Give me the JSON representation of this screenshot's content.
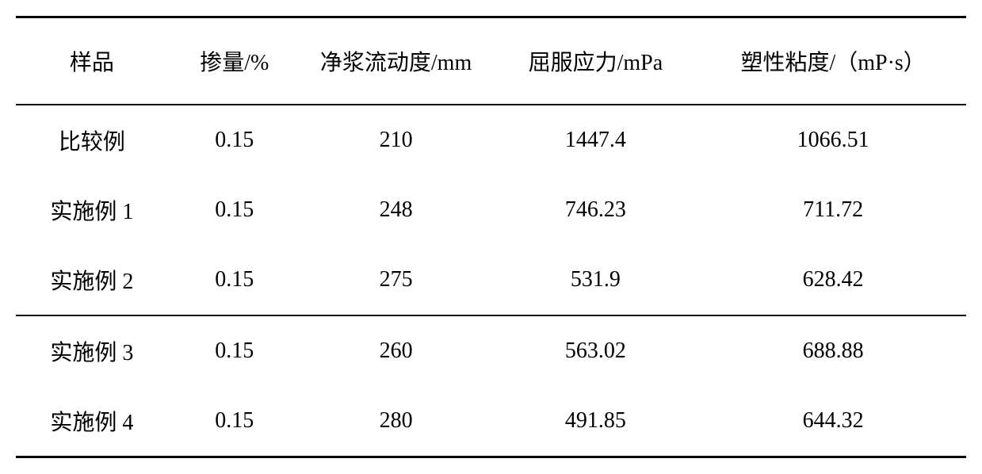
{
  "table": {
    "type": "table",
    "background_color": "#ffffff",
    "text_color": "#000000",
    "border_color": "#000000",
    "top_border_width": 3,
    "header_bottom_border_width": 2,
    "section_border_width": 2,
    "bottom_border_width": 3,
    "header_fontsize": 28,
    "cell_fontsize": 28,
    "columns": [
      {
        "key": "sample",
        "label": "样品",
        "width_pct": 16
      },
      {
        "key": "dosage",
        "label": "掺量/%",
        "width_pct": 14
      },
      {
        "key": "fluidity",
        "label": "净浆流动度/mm",
        "width_pct": 20
      },
      {
        "key": "yield_stress",
        "label": "屈服应力/mPa",
        "width_pct": 22
      },
      {
        "key": "viscosity",
        "label": "塑性粘度/（mP·s）",
        "width_pct": 28
      }
    ],
    "rows": [
      {
        "sample": "比较例",
        "dosage": "0.15",
        "fluidity": "210",
        "yield_stress": "1447.4",
        "viscosity": "1066.51",
        "section_end": false
      },
      {
        "sample": "实施例 1",
        "dosage": "0.15",
        "fluidity": "248",
        "yield_stress": "746.23",
        "viscosity": "711.72",
        "section_end": false
      },
      {
        "sample": "实施例 2",
        "dosage": "0.15",
        "fluidity": "275",
        "yield_stress": "531.9",
        "viscosity": "628.42",
        "section_end": true
      },
      {
        "sample": "实施例 3",
        "dosage": "0.15",
        "fluidity": "260",
        "yield_stress": "563.02",
        "viscosity": "688.88",
        "section_end": false
      },
      {
        "sample": "实施例 4",
        "dosage": "0.15",
        "fluidity": "280",
        "yield_stress": "491.85",
        "viscosity": "644.32",
        "section_end": false
      }
    ]
  }
}
